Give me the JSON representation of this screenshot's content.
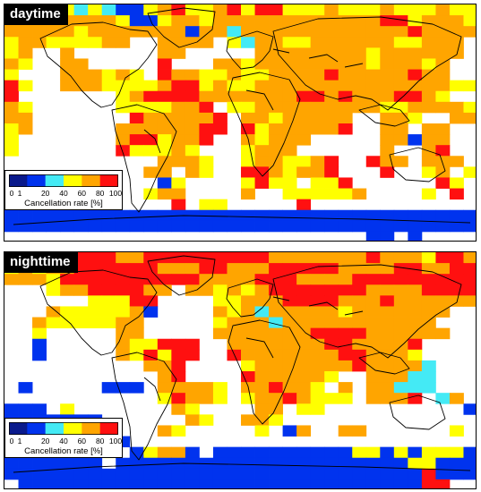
{
  "palette": [
    "#0a1a8c",
    "#0033ee",
    "#44eaf5",
    "#ffff00",
    "#ffa500",
    "#ff1010"
  ],
  "coastline_color": "#000000",
  "legend": {
    "title": "Cancellation rate [%]",
    "ticks": [
      "0",
      "1",
      "20",
      "40",
      "60",
      "80",
      "100"
    ]
  },
  "panels": [
    {
      "id": "day",
      "label": "daytime",
      "grid": [
        "OYRYYCYCBBYORYYORYRRYYYOYYYOYYYOYY",
        "OOOOOOOOYBBYOOYOOOOOOOOOOOORRYOOOY",
        "OOOOOYOOOOOOOBOOCOOOOOOOOOOOOROOOO",
        "YOOYYYYOO..OOOO.YCOOYYOOOOOOYYOOO.",
        "YO..O......OO.....OOOOOOOOYOOOOOO.",
        "OY..OO.....R...OOYOOOOOOOOYOOOYO..",
        "Y...OOOYOY.ROOYYOYYOOOOROOOOOROO..",
        "RY..OOOYYYYORRYOYYOOOOOOOOOOOOOOYY",
        "R.......YORRRROOOOOOORROROOORROY..",
        "OY......YYYYOOR.YYOOOOOOOOOYYOOOOY",
        "OO.......ROOOOOR.OOYOOOOO..OOY..OO",
        "YO......OOOOOORR.RYOOOOOR..OO.OO..",
        "Y.......ORRYOOR..OYOOO.....OOBOO..",
        "Y.......RYYYOY...YOOO......O..OR..",
        "...........OOOY..YOOYYOR..ROO.OOO.",
        "..........OO.OY..RROYOOR...R..YO.Y",
        "...........BY....YRYY.YYR......RY.",
        "YRO.......YOO....O..YYYYYO....Y.R.",
        "............R.YY.....R............",
        "BBBBBBBBBBBBBBBBBBBBBBBBBBBBBBBBBB",
        "BBBBBBBBBBBBBBBBBBBBBBBBBBBBBBBBBB",
        "..........................BB.B...."
      ]
    },
    {
      "id": "night",
      "label": "nighttime",
      "grid": [
        "OOOYRRRROORRRRRRRRROOOOOOOROOOYRRO",
        "YOYOORRRRRROOORROOORRRRROOOORROORR",
        "OOOYRRRRRRRRRROOOORRROOOORRRRRRRRR",
        "...YOORRRROO.OOYOYORRRRRRROOOORRRR",
        "......YYYRR....YYOOORRRROOOROOOOOO",
        "...OYYYYYOB....OYOCOOOOOYOOOOOOO..",
        "..OYYYYYOO.....YOOOCOOOOOOOOOOO...",
        "..Y.....OO.....OOOOOOORRRROOOOOO..",
        "..B.....OYYRRR..OOOOOOORROOOOR....",
        "..B.....OYRYRR..ROOOOOOORROOOY....",
        "..........OOR....YOOOOOOOROOOOC...",
        "...........OR....ROOOOOY..OOOCC...",
        ".B.....BBB.OOOOY.OOROOY.O.OOCCC...",
        "...........YROOY.YOOROYYY.OOOR.CO.",
        "BBB.Y.......OY....OO.YY..........B",
        "BBBBBBB......OY..OOY..............",
        "BBBBBYBB...OY.....Y.BO..OO......Y.",
        "BBBBBBBBB.........................",
        "YYYYBBYY.BYOOB.BBBBBBBBBBYYBYBYYYB",
        "BBBBBBB.BBBBBBBBBBBBBBBBBBBBBYYBBB",
        "BBBBBBBBBBBBBBBBBBBBBBBBBBBBBBRBBB",
        ".BBBBBBBBBBBBBBBBBBBBBBBBBBBBBRR.."
      ]
    }
  ]
}
